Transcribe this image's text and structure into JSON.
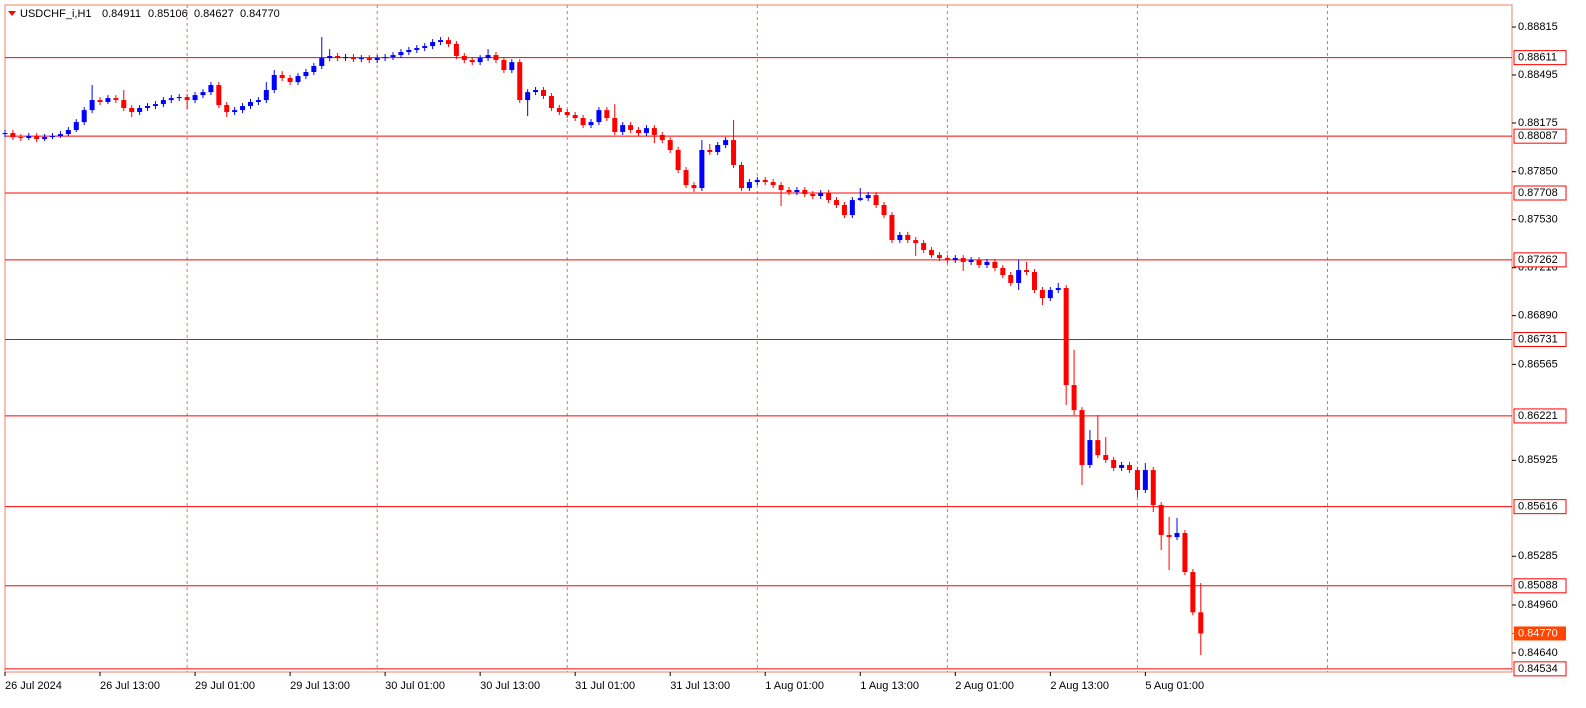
{
  "chart_data": {
    "type": "candlestick",
    "title": "USDCHF_i,H1",
    "title_values": [
      "0.84911",
      "0.85106",
      "0.84627",
      "0.84770"
    ],
    "up_color": "#0000ff",
    "down_color": "#ff0000",
    "candles": [
      [
        0.88101,
        0.88128,
        0.88081,
        0.88108
      ],
      [
        0.88108,
        0.88128,
        0.88061,
        0.88081
      ],
      [
        0.88081,
        0.88101,
        0.88055,
        0.88075
      ],
      [
        0.88075,
        0.88108,
        0.88061,
        0.88088
      ],
      [
        0.88088,
        0.88108,
        0.88048,
        0.88068
      ],
      [
        0.88068,
        0.88101,
        0.88055,
        0.88081
      ],
      [
        0.88081,
        0.88108,
        0.88068,
        0.88088
      ],
      [
        0.88088,
        0.88121,
        0.88075,
        0.88101
      ],
      [
        0.88101,
        0.88148,
        0.88088,
        0.88128
      ],
      [
        0.88128,
        0.88201,
        0.88115,
        0.88181
      ],
      [
        0.88181,
        0.88281,
        0.88161,
        0.88261
      ],
      [
        0.88261,
        0.88428,
        0.88241,
        0.88328
      ],
      [
        0.88328,
        0.88348,
        0.88295,
        0.88315
      ],
      [
        0.88315,
        0.88361,
        0.88301,
        0.88341
      ],
      [
        0.88341,
        0.88361,
        0.88308,
        0.88328
      ],
      [
        0.88328,
        0.88395,
        0.88255,
        0.88275
      ],
      [
        0.88275,
        0.88295,
        0.88215,
        0.88248
      ],
      [
        0.88248,
        0.88295,
        0.88228,
        0.88275
      ],
      [
        0.88275,
        0.88308,
        0.88255,
        0.88288
      ],
      [
        0.88288,
        0.88321,
        0.88268,
        0.88301
      ],
      [
        0.88301,
        0.88348,
        0.88281,
        0.88328
      ],
      [
        0.88328,
        0.88361,
        0.88308,
        0.88341
      ],
      [
        0.88341,
        0.88368,
        0.88321,
        0.88348
      ],
      [
        0.88348,
        0.88368,
        0.88268,
        0.88328
      ],
      [
        0.88328,
        0.88381,
        0.88308,
        0.88361
      ],
      [
        0.88361,
        0.88401,
        0.88341,
        0.88381
      ],
      [
        0.88381,
        0.88448,
        0.88361,
        0.88428
      ],
      [
        0.88428,
        0.88448,
        0.88275,
        0.88295
      ],
      [
        0.88295,
        0.88315,
        0.88215,
        0.88248
      ],
      [
        0.88248,
        0.88281,
        0.88228,
        0.88261
      ],
      [
        0.88261,
        0.88308,
        0.88241,
        0.88288
      ],
      [
        0.88288,
        0.88335,
        0.88268,
        0.88315
      ],
      [
        0.88315,
        0.88348,
        0.88295,
        0.88328
      ],
      [
        0.88328,
        0.88448,
        0.88308,
        0.88395
      ],
      [
        0.88395,
        0.88528,
        0.88375,
        0.88495
      ],
      [
        0.88495,
        0.88521,
        0.88455,
        0.88475
      ],
      [
        0.88475,
        0.88495,
        0.88428,
        0.88448
      ],
      [
        0.88448,
        0.88508,
        0.88428,
        0.88488
      ],
      [
        0.88488,
        0.88535,
        0.88468,
        0.88515
      ],
      [
        0.88515,
        0.88575,
        0.88495,
        0.88555
      ],
      [
        0.88555,
        0.88748,
        0.88535,
        0.88608
      ],
      [
        0.88608,
        0.88668,
        0.88588,
        0.88622
      ],
      [
        0.88622,
        0.88642,
        0.88588,
        0.88608
      ],
      [
        0.88608,
        0.88635,
        0.88588,
        0.88615
      ],
      [
        0.88615,
        0.88635,
        0.88581,
        0.88601
      ],
      [
        0.88601,
        0.88628,
        0.88581,
        0.88608
      ],
      [
        0.88608,
        0.88628,
        0.88575,
        0.88595
      ],
      [
        0.88595,
        0.88628,
        0.88575,
        0.88608
      ],
      [
        0.88608,
        0.88635,
        0.88588,
        0.88615
      ],
      [
        0.88615,
        0.88648,
        0.88595,
        0.88628
      ],
      [
        0.88628,
        0.88668,
        0.88608,
        0.88648
      ],
      [
        0.88648,
        0.88682,
        0.88628,
        0.88662
      ],
      [
        0.88662,
        0.88695,
        0.88642,
        0.88675
      ],
      [
        0.88675,
        0.88708,
        0.88655,
        0.88688
      ],
      [
        0.88688,
        0.88735,
        0.88668,
        0.88715
      ],
      [
        0.88715,
        0.88748,
        0.88695,
        0.88728
      ],
      [
        0.88728,
        0.88748,
        0.88682,
        0.88702
      ],
      [
        0.88702,
        0.88722,
        0.88601,
        0.88622
      ],
      [
        0.88622,
        0.88642,
        0.88575,
        0.88595
      ],
      [
        0.88595,
        0.88615,
        0.88561,
        0.88581
      ],
      [
        0.88581,
        0.88628,
        0.88561,
        0.88608
      ],
      [
        0.88608,
        0.88668,
        0.88588,
        0.88628
      ],
      [
        0.88628,
        0.88648,
        0.88575,
        0.88595
      ],
      [
        0.88595,
        0.88615,
        0.88508,
        0.88528
      ],
      [
        0.88528,
        0.88601,
        0.88508,
        0.88581
      ],
      [
        0.88581,
        0.88601,
        0.88308,
        0.88328
      ],
      [
        0.88328,
        0.88401,
        0.88221,
        0.88381
      ],
      [
        0.88381,
        0.88415,
        0.88361,
        0.88395
      ],
      [
        0.88395,
        0.88415,
        0.88335,
        0.88355
      ],
      [
        0.88355,
        0.88375,
        0.88255,
        0.88275
      ],
      [
        0.88275,
        0.88295,
        0.88228,
        0.88248
      ],
      [
        0.88248,
        0.88268,
        0.88208,
        0.88228
      ],
      [
        0.88228,
        0.88248,
        0.88188,
        0.88208
      ],
      [
        0.88208,
        0.88228,
        0.88141,
        0.88161
      ],
      [
        0.88161,
        0.88201,
        0.88141,
        0.88181
      ],
      [
        0.88181,
        0.88281,
        0.88161,
        0.88261
      ],
      [
        0.88261,
        0.88281,
        0.88188,
        0.88208
      ],
      [
        0.88208,
        0.88301,
        0.88095,
        0.88115
      ],
      [
        0.88115,
        0.88181,
        0.88095,
        0.88161
      ],
      [
        0.88161,
        0.88181,
        0.88108,
        0.88128
      ],
      [
        0.88128,
        0.88148,
        0.88088,
        0.88108
      ],
      [
        0.88108,
        0.88161,
        0.88088,
        0.88141
      ],
      [
        0.88141,
        0.88161,
        0.88041,
        0.88095
      ],
      [
        0.88095,
        0.88115,
        0.88041,
        0.88061
      ],
      [
        0.88061,
        0.88081,
        0.87975,
        0.87995
      ],
      [
        0.87995,
        0.88015,
        0.87841,
        0.87861
      ],
      [
        0.87861,
        0.87881,
        0.87741,
        0.87761
      ],
      [
        0.87761,
        0.87781,
        0.87715,
        0.87741
      ],
      [
        0.87741,
        0.88061,
        0.87721,
        0.87995
      ],
      [
        0.87995,
        0.88035,
        0.87961,
        0.87981
      ],
      [
        0.87981,
        0.88048,
        0.87961,
        0.88028
      ],
      [
        0.88028,
        0.88081,
        0.88008,
        0.88061
      ],
      [
        0.88061,
        0.88195,
        0.87875,
        0.87895
      ],
      [
        0.87895,
        0.87915,
        0.87721,
        0.87741
      ],
      [
        0.87741,
        0.87801,
        0.87721,
        0.87781
      ],
      [
        0.87781,
        0.87815,
        0.87761,
        0.87795
      ],
      [
        0.87795,
        0.87815,
        0.87761,
        0.87781
      ],
      [
        0.87781,
        0.87801,
        0.87741,
        0.87761
      ],
      [
        0.87761,
        0.87781,
        0.87621,
        0.87728
      ],
      [
        0.87728,
        0.87748,
        0.87694,
        0.87714
      ],
      [
        0.87714,
        0.87748,
        0.87694,
        0.87728
      ],
      [
        0.87728,
        0.87748,
        0.87681,
        0.87701
      ],
      [
        0.87701,
        0.87721,
        0.87668,
        0.87688
      ],
      [
        0.87688,
        0.87728,
        0.87668,
        0.87708
      ],
      [
        0.87708,
        0.87728,
        0.87641,
        0.87661
      ],
      [
        0.87661,
        0.87681,
        0.87608,
        0.87628
      ],
      [
        0.87628,
        0.87648,
        0.87541,
        0.87561
      ],
      [
        0.87561,
        0.87681,
        0.87541,
        0.87661
      ],
      [
        0.87661,
        0.87741,
        0.87654,
        0.87674
      ],
      [
        0.87674,
        0.87714,
        0.87654,
        0.87694
      ],
      [
        0.87694,
        0.87714,
        0.87608,
        0.87628
      ],
      [
        0.87628,
        0.87648,
        0.87541,
        0.87561
      ],
      [
        0.87561,
        0.87581,
        0.87374,
        0.87394
      ],
      [
        0.87394,
        0.87448,
        0.87374,
        0.87428
      ],
      [
        0.87428,
        0.87448,
        0.87374,
        0.87394
      ],
      [
        0.87394,
        0.87414,
        0.87288,
        0.87374
      ],
      [
        0.87374,
        0.87394,
        0.87308,
        0.87328
      ],
      [
        0.87328,
        0.87348,
        0.87274,
        0.87294
      ],
      [
        0.87294,
        0.87314,
        0.87254,
        0.87274
      ],
      [
        0.87274,
        0.87294,
        0.87241,
        0.87261
      ],
      [
        0.87261,
        0.87294,
        0.87241,
        0.87274
      ],
      [
        0.87274,
        0.87294,
        0.87188,
        0.87248
      ],
      [
        0.87248,
        0.87281,
        0.87228,
        0.87261
      ],
      [
        0.87261,
        0.87281,
        0.87208,
        0.87228
      ],
      [
        0.87228,
        0.87268,
        0.87208,
        0.87248
      ],
      [
        0.87248,
        0.87268,
        0.87188,
        0.87208
      ],
      [
        0.87208,
        0.87228,
        0.87141,
        0.87161
      ],
      [
        0.87161,
        0.87181,
        0.87088,
        0.87108
      ],
      [
        0.87108,
        0.87261,
        0.87061,
        0.87194
      ],
      [
        0.87194,
        0.87248,
        0.87161,
        0.87181
      ],
      [
        0.87181,
        0.87201,
        0.87041,
        0.87061
      ],
      [
        0.87061,
        0.87081,
        0.86961,
        0.87007
      ],
      [
        0.87007,
        0.87081,
        0.86988,
        0.87061
      ],
      [
        0.87061,
        0.87108,
        0.87041,
        0.87074
      ],
      [
        0.87074,
        0.87094,
        0.86294,
        0.86427
      ],
      [
        0.86427,
        0.86661,
        0.86227,
        0.8626
      ],
      [
        0.8626,
        0.8628,
        0.8576,
        0.85894
      ],
      [
        0.85894,
        0.86127,
        0.85874,
        0.8606
      ],
      [
        0.8606,
        0.86227,
        0.8594,
        0.8596
      ],
      [
        0.8596,
        0.8608,
        0.85907,
        0.85927
      ],
      [
        0.85927,
        0.85947,
        0.85854,
        0.85874
      ],
      [
        0.85874,
        0.85914,
        0.85854,
        0.85894
      ],
      [
        0.85894,
        0.85914,
        0.8584,
        0.8586
      ],
      [
        0.8586,
        0.8588,
        0.8568,
        0.85727
      ],
      [
        0.85727,
        0.85907,
        0.85707,
        0.8586
      ],
      [
        0.8586,
        0.8588,
        0.8558,
        0.85627
      ],
      [
        0.85627,
        0.85647,
        0.85327,
        0.85427
      ],
      [
        0.85427,
        0.85547,
        0.85193,
        0.85413
      ],
      [
        0.85413,
        0.8554,
        0.85393,
        0.8544
      ],
      [
        0.8544,
        0.8546,
        0.8516,
        0.8518
      ],
      [
        0.8518,
        0.852,
        0.84891,
        0.84911
      ],
      [
        0.84911,
        0.85106,
        0.84627,
        0.8477
      ]
    ],
    "xlim": [
      0,
      190.3
    ],
    "xticks": [
      {
        "value": 0,
        "label": "26 Jul 2024"
      },
      {
        "value": 12,
        "label": "26 Jul 13:00"
      },
      {
        "value": 24,
        "label": "29 Jul 01:00"
      },
      {
        "value": 36,
        "label": "29 Jul 13:00"
      },
      {
        "value": 48,
        "label": "30 Jul 01:00"
      },
      {
        "value": 60,
        "label": "30 Jul 13:00"
      },
      {
        "value": 72,
        "label": "31 Jul 01:00"
      },
      {
        "value": 84,
        "label": "31 Jul 13:00"
      },
      {
        "value": 96,
        "label": "1 Aug 01:00"
      },
      {
        "value": 108,
        "label": "1 Aug 13:00"
      },
      {
        "value": 120,
        "label": "2 Aug 01:00"
      },
      {
        "value": 132,
        "label": "2 Aug 13:00"
      },
      {
        "value": 144,
        "label": "5 Aug 01:00"
      }
    ],
    "xgrid": [
      23,
      47,
      71,
      95,
      119,
      143,
      167
    ],
    "ylim": [
      0.84513,
      0.88962
    ],
    "yticks": [
      0.88815,
      0.88495,
      0.88175,
      {
        "value": 0.8785,
        "label": "0.87850"
      },
      {
        "value": 0.8753,
        "label": "0.87530"
      },
      {
        "value": 0.8721,
        "label": "0.87210"
      },
      {
        "value": 0.8689,
        "label": "0.86890"
      },
      0.86565,
      0.85925,
      0.85285,
      {
        "value": 0.8496,
        "label": "0.84960"
      },
      {
        "value": 0.8464,
        "label": "0.84640"
      }
    ],
    "levels": [
      0.88611,
      0.88087,
      0.87708,
      0.87262,
      0.86731,
      0.86221,
      0.85616,
      0.85088,
      0.84534
    ],
    "level_color": "#ff0000",
    "last_price": {
      "value": 0.8477,
      "label": "0.84770"
    },
    "last_price_color": "#ff4500"
  }
}
